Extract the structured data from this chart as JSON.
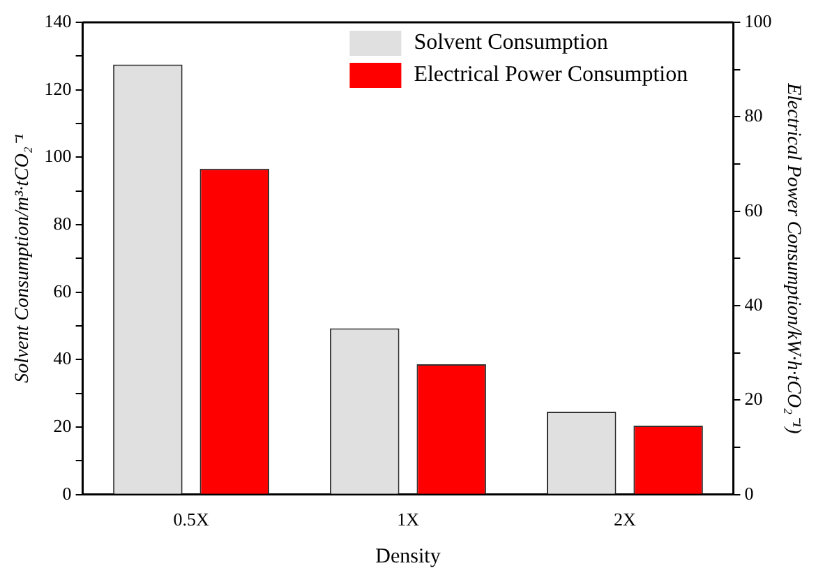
{
  "chart_data": {
    "type": "bar",
    "xlabel": "Density",
    "ylabel": "Solvent Consumption/m³·tCO₂⁻¹",
    "y2label": "Electrical Power Consumption/kW·h·tCO₂⁻¹)",
    "categories": [
      "0.5X",
      "1X",
      "2X"
    ],
    "series": [
      {
        "name": "Solvent Consumption",
        "color": "#e0e0e0",
        "values": [
          127.5,
          49.3,
          24.6
        ]
      },
      {
        "name": "Electrical Power Consumption",
        "color": "#ff0000",
        "axis": "y2",
        "values": [
          69.0,
          27.6,
          14.6
        ]
      }
    ],
    "ylim": [
      0,
      140
    ],
    "yticks": [
      0,
      {
        "value": 10,
        "label": null
      },
      20,
      {
        "value": 30,
        "label": null
      },
      40,
      {
        "value": 50,
        "label": null
      },
      60,
      {
        "value": 70,
        "label": null
      },
      80,
      {
        "value": 90,
        "label": null
      },
      100,
      {
        "value": 110,
        "label": null
      },
      120,
      {
        "value": 130,
        "label": null
      },
      140
    ],
    "y2lim": [
      0,
      100
    ],
    "y2ticks": [
      0,
      {
        "value": 10,
        "label": null
      },
      20,
      {
        "value": 30,
        "label": null
      },
      40,
      {
        "value": 50,
        "label": null
      },
      60,
      {
        "value": 70,
        "label": null
      },
      80,
      {
        "value": 90,
        "label": null
      },
      100
    ],
    "grid": false,
    "legend": "top right"
  }
}
